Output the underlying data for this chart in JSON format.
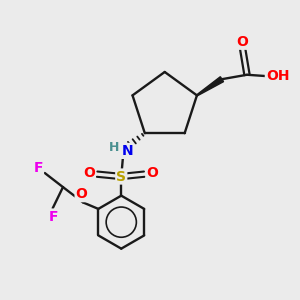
{
  "bg_color": "#ebebeb",
  "bond_color": "#1a1a1a",
  "atom_colors": {
    "O": "#ff0000",
    "N": "#0000ee",
    "S": "#b8a000",
    "F": "#ee00ee",
    "H_gray": "#4a9090",
    "C": "#1a1a1a"
  }
}
